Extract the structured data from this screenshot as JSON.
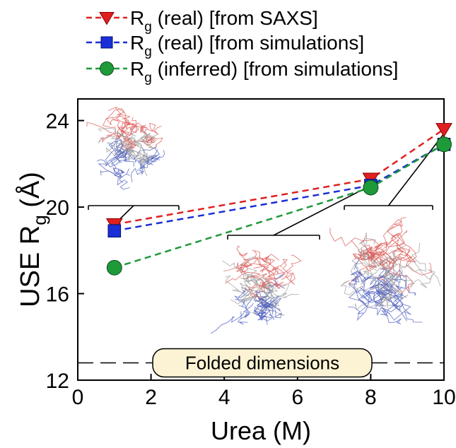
{
  "chart_data": {
    "type": "line",
    "xlabel": "Urea (M)",
    "ylabel": "USE R",
    "ylabel_sub": "g",
    "ylabel_unit": "(Å)",
    "xlim": [
      0,
      10
    ],
    "ylim": [
      12,
      25
    ],
    "x_ticks": [
      0,
      2,
      4,
      6,
      8,
      10
    ],
    "y_ticks": [
      12,
      16,
      20,
      24
    ],
    "series": [
      {
        "name": "R",
        "name_sub": "g",
        "name_rest": " (real) [from SAXS]",
        "color": "#e02020",
        "marker": "triangle",
        "x": [
          1,
          8,
          10
        ],
        "y": [
          19.2,
          21.3,
          23.6
        ]
      },
      {
        "name": "R",
        "name_sub": "g",
        "name_rest": " (real) [from simulations]",
        "color": "#1a2fd6",
        "marker": "square",
        "x": [
          1,
          8,
          10
        ],
        "y": [
          18.9,
          21.0,
          22.9
        ]
      },
      {
        "name": "R",
        "name_sub": "g",
        "name_rest": " (inferred) [from simulations]",
        "color": "#1e9a3a",
        "marker": "circle",
        "x": [
          1,
          8,
          10
        ],
        "y": [
          17.2,
          20.9,
          22.9
        ]
      }
    ],
    "reference_line": {
      "y": 12.8,
      "label": "Folded dimensions"
    },
    "legend_position": "top",
    "grid": false
  },
  "colors": {
    "ensemble_red": "#d9534f",
    "ensemble_blue": "#4a5bbf",
    "ensemble_gray": "#9a9a9a",
    "label_box_fill": "#fbf3d4"
  }
}
